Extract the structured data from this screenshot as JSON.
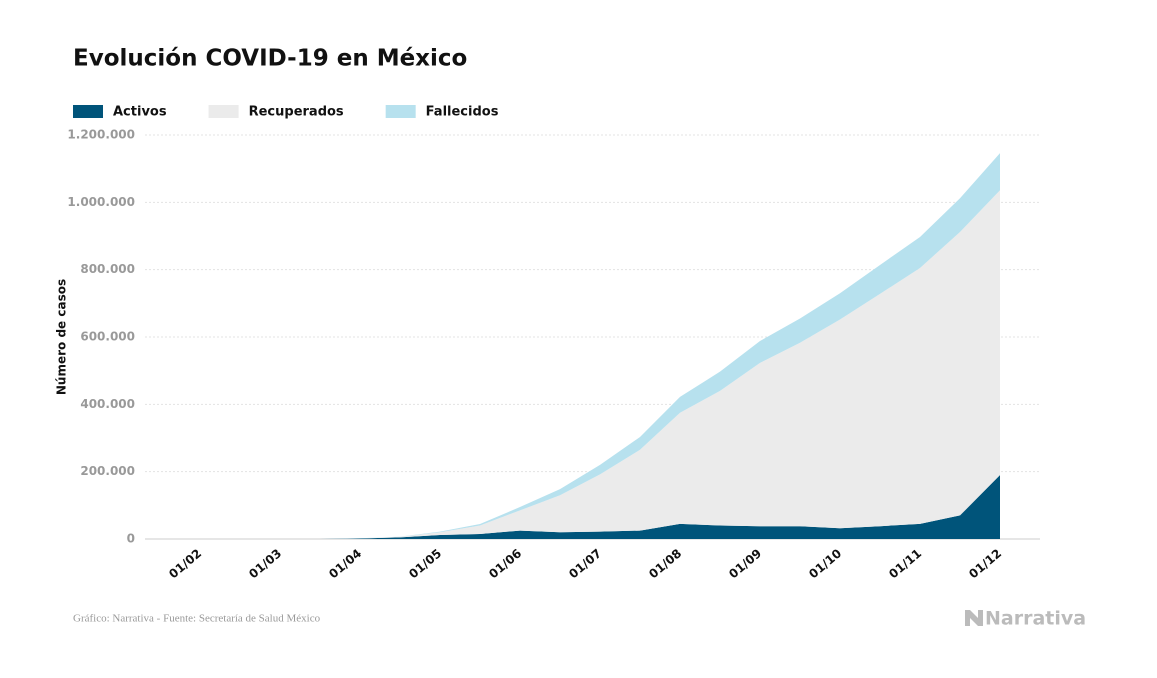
{
  "chart_data": {
    "type": "stacked_area",
    "title": "Evolución COVID-19 en México",
    "y_label": "Número de casos",
    "source": "Gráfico: Narrativa - Fuente: Secretaría de Salud México",
    "brand": "Narrativa",
    "categories": [
      "01/02",
      null,
      "01/03",
      null,
      "01/04",
      null,
      "01/05",
      null,
      "01/06",
      null,
      "01/07",
      null,
      "01/08",
      null,
      "01/09",
      null,
      "01/10",
      null,
      "01/11",
      null,
      "01/12"
    ],
    "series": [
      {
        "name": "Activos",
        "color": "#00547a",
        "values": [
          0,
          0,
          0,
          100,
          1500,
          5000,
          12000,
          15000,
          25000,
          20000,
          22000,
          25000,
          45000,
          40000,
          38000,
          38000,
          32000,
          38000,
          45000,
          70000,
          190000
        ]
      },
      {
        "name": "Recuperados",
        "color": "#ebebeb",
        "values": [
          0,
          0,
          0,
          0,
          500,
          1500,
          8000,
          25000,
          60000,
          110000,
          170000,
          240000,
          330000,
          400000,
          485000,
          545000,
          620000,
          690000,
          760000,
          842000,
          846000
        ]
      },
      {
        "name": "Fallecidos",
        "color": "#b7e1ee",
        "values": [
          0,
          0,
          0,
          0,
          50,
          450,
          2000,
          4500,
          10000,
          18000,
          28000,
          38000,
          47000,
          57000,
          65000,
          72000,
          78000,
          86000,
          92000,
          100000,
          110000
        ]
      }
    ],
    "ylim": [
      0,
      1200000
    ],
    "yticks": [
      0,
      {
        "value": 200000,
        "label": "200.000"
      },
      {
        "value": 400000,
        "label": "400.000"
      },
      {
        "value": 600000,
        "label": "600.000"
      },
      {
        "value": 800000,
        "label": "800.000"
      },
      {
        "value": 1000000,
        "label": "1.000.000"
      },
      {
        "value": 1200000,
        "label": "1.200.000"
      }
    ],
    "grid": true
  }
}
